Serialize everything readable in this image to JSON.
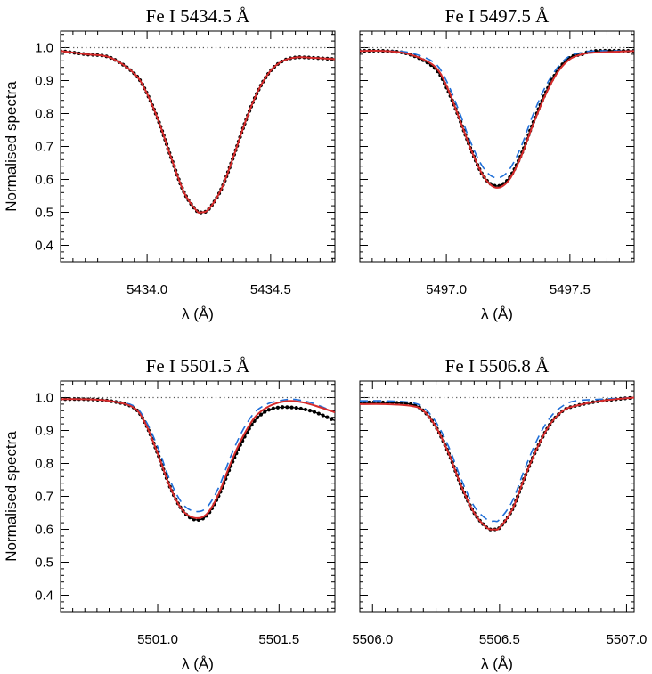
{
  "colors": {
    "observed": "#000000",
    "model_solid": "#d62b2b",
    "model_dashed": "#1f6fd8",
    "continuum": "#555555"
  },
  "shared": {
    "ylabel": "Normalised spectra",
    "xlabel": "λ (Å)"
  },
  "chart_data": [
    {
      "type": "line",
      "title": "Fe I  5434.5 Å",
      "xlabel": "λ (Å)",
      "ylabel": "Normalised spectra",
      "xlim": [
        5433.65,
        5434.76
      ],
      "ylim": [
        0.35,
        1.05
      ],
      "xticks": [
        5434.0,
        5434.5
      ],
      "xtick_labels": [
        "5434.0",
        "5434.5"
      ],
      "yticks": [
        0.4,
        0.5,
        0.6,
        0.7,
        0.8,
        0.9,
        1.0
      ],
      "ytick_labels": [
        "0.4",
        "0.5",
        "0.6",
        "0.7",
        "0.8",
        "0.9",
        "1.0"
      ],
      "continuum": 1.0,
      "series": [
        {
          "style": "observed-dots",
          "x": [
            5433.65,
            5433.75,
            5433.85,
            5433.95,
            5434.0,
            5434.05,
            5434.1,
            5434.15,
            5434.2,
            5434.22,
            5434.25,
            5434.3,
            5434.35,
            5434.4,
            5434.45,
            5434.5,
            5434.55,
            5434.6,
            5434.65,
            5434.76
          ],
          "y": [
            0.99,
            0.98,
            0.97,
            0.92,
            0.86,
            0.77,
            0.66,
            0.56,
            0.505,
            0.5,
            0.51,
            0.57,
            0.67,
            0.78,
            0.87,
            0.93,
            0.96,
            0.97,
            0.97,
            0.965
          ]
        },
        {
          "style": "solid",
          "x": [
            5433.65,
            5433.75,
            5433.85,
            5433.95,
            5434.0,
            5434.05,
            5434.1,
            5434.15,
            5434.2,
            5434.22,
            5434.25,
            5434.3,
            5434.35,
            5434.4,
            5434.45,
            5434.5,
            5434.55,
            5434.6,
            5434.65,
            5434.76
          ],
          "y": [
            0.99,
            0.98,
            0.97,
            0.92,
            0.86,
            0.77,
            0.66,
            0.56,
            0.505,
            0.5,
            0.51,
            0.57,
            0.67,
            0.78,
            0.87,
            0.93,
            0.96,
            0.97,
            0.97,
            0.965
          ]
        }
      ]
    },
    {
      "type": "line",
      "title": "Fe I  5497.5 Å",
      "xlabel": "λ (Å)",
      "ylabel": "",
      "xlim": [
        5496.65,
        5497.76
      ],
      "ylim": [
        0.35,
        1.05
      ],
      "xticks": [
        5497.0,
        5497.5
      ],
      "xtick_labels": [
        "5497.0",
        "5497.5"
      ],
      "yticks": [
        0.4,
        0.5,
        0.6,
        0.7,
        0.8,
        0.9,
        1.0
      ],
      "ytick_labels": [],
      "continuum": 1.0,
      "series": [
        {
          "style": "observed-dots",
          "x": [
            5496.65,
            5496.75,
            5496.85,
            5496.95,
            5497.0,
            5497.05,
            5497.1,
            5497.15,
            5497.2,
            5497.25,
            5497.3,
            5497.35,
            5497.4,
            5497.45,
            5497.5,
            5497.55,
            5497.6,
            5497.76
          ],
          "y": [
            0.99,
            0.99,
            0.98,
            0.94,
            0.88,
            0.79,
            0.69,
            0.61,
            0.58,
            0.6,
            0.67,
            0.77,
            0.86,
            0.93,
            0.97,
            0.98,
            0.99,
            0.99
          ]
        },
        {
          "style": "solid",
          "x": [
            5496.65,
            5496.75,
            5496.85,
            5496.95,
            5497.0,
            5497.05,
            5497.1,
            5497.15,
            5497.2,
            5497.25,
            5497.3,
            5497.35,
            5497.4,
            5497.45,
            5497.5,
            5497.55,
            5497.6,
            5497.76
          ],
          "y": [
            0.99,
            0.99,
            0.98,
            0.945,
            0.885,
            0.79,
            0.69,
            0.61,
            0.575,
            0.595,
            0.665,
            0.765,
            0.855,
            0.925,
            0.965,
            0.98,
            0.985,
            0.99
          ]
        },
        {
          "style": "dashed",
          "x": [
            5496.65,
            5496.75,
            5496.85,
            5496.95,
            5497.0,
            5497.05,
            5497.1,
            5497.15,
            5497.2,
            5497.25,
            5497.3,
            5497.35,
            5497.4,
            5497.45,
            5497.5,
            5497.55,
            5497.6,
            5497.76
          ],
          "y": [
            0.99,
            0.99,
            0.985,
            0.955,
            0.9,
            0.81,
            0.71,
            0.635,
            0.605,
            0.625,
            0.695,
            0.795,
            0.88,
            0.94,
            0.975,
            0.985,
            0.99,
            0.99
          ]
        }
      ]
    },
    {
      "type": "line",
      "title": "Fe I  5501.5 Å",
      "xlabel": "λ (Å)",
      "ylabel": "Normalised spectra",
      "xlim": [
        5500.6,
        5501.73
      ],
      "ylim": [
        0.35,
        1.05
      ],
      "xticks": [
        5501.0,
        5501.5
      ],
      "xtick_labels": [
        "5501.0",
        "5501.5"
      ],
      "yticks": [
        0.4,
        0.5,
        0.6,
        0.7,
        0.8,
        0.9,
        1.0
      ],
      "ytick_labels": [
        "0.4",
        "0.5",
        "0.6",
        "0.7",
        "0.8",
        "0.9",
        "1.0"
      ],
      "continuum": 1.0,
      "series": [
        {
          "style": "observed-dots",
          "x": [
            5500.6,
            5500.7,
            5500.8,
            5500.9,
            5500.95,
            5501.0,
            5501.05,
            5501.1,
            5501.15,
            5501.2,
            5501.25,
            5501.3,
            5501.35,
            5501.4,
            5501.45,
            5501.5,
            5501.55,
            5501.6,
            5501.65,
            5501.73
          ],
          "y": [
            0.995,
            0.995,
            0.99,
            0.97,
            0.92,
            0.83,
            0.73,
            0.66,
            0.63,
            0.64,
            0.7,
            0.79,
            0.87,
            0.93,
            0.96,
            0.97,
            0.97,
            0.965,
            0.955,
            0.93
          ]
        },
        {
          "style": "solid",
          "x": [
            5500.6,
            5500.7,
            5500.8,
            5500.9,
            5500.95,
            5501.0,
            5501.05,
            5501.1,
            5501.15,
            5501.2,
            5501.25,
            5501.3,
            5501.35,
            5501.4,
            5501.45,
            5501.5,
            5501.55,
            5501.6,
            5501.65,
            5501.73
          ],
          "y": [
            0.995,
            0.995,
            0.99,
            0.97,
            0.92,
            0.83,
            0.73,
            0.66,
            0.635,
            0.645,
            0.705,
            0.8,
            0.88,
            0.94,
            0.97,
            0.985,
            0.99,
            0.985,
            0.975,
            0.955
          ]
        },
        {
          "style": "dashed",
          "x": [
            5500.6,
            5500.7,
            5500.8,
            5500.9,
            5500.95,
            5501.0,
            5501.05,
            5501.1,
            5501.15,
            5501.2,
            5501.25,
            5501.3,
            5501.35,
            5501.4,
            5501.45,
            5501.5,
            5501.55,
            5501.6,
            5501.65,
            5501.73
          ],
          "y": [
            0.995,
            0.995,
            0.99,
            0.975,
            0.93,
            0.85,
            0.75,
            0.68,
            0.655,
            0.665,
            0.725,
            0.82,
            0.9,
            0.955,
            0.98,
            0.99,
            0.995,
            0.99,
            0.98,
            0.955
          ]
        }
      ]
    },
    {
      "type": "line",
      "title": "Fe I  5506.8 Å",
      "xlabel": "λ (Å)",
      "ylabel": "",
      "xlim": [
        5505.95,
        5507.03
      ],
      "ylim": [
        0.35,
        1.05
      ],
      "xticks": [
        5506.0,
        5506.5,
        5507.0
      ],
      "xtick_labels": [
        "5506.0",
        "5506.5",
        "5507.0"
      ],
      "yticks": [
        0.4,
        0.5,
        0.6,
        0.7,
        0.8,
        0.9,
        1.0
      ],
      "ytick_labels": [],
      "continuum": 1.0,
      "series": [
        {
          "style": "observed-dots",
          "x": [
            5505.95,
            5506.05,
            5506.15,
            5506.2,
            5506.25,
            5506.3,
            5506.35,
            5506.4,
            5506.45,
            5506.48,
            5506.5,
            5506.55,
            5506.6,
            5506.65,
            5506.7,
            5506.75,
            5506.8,
            5506.9,
            5507.03
          ],
          "y": [
            0.985,
            0.985,
            0.98,
            0.96,
            0.91,
            0.83,
            0.73,
            0.65,
            0.605,
            0.6,
            0.605,
            0.66,
            0.76,
            0.85,
            0.92,
            0.96,
            0.975,
            0.99,
            1.0
          ]
        },
        {
          "style": "solid",
          "x": [
            5505.95,
            5506.05,
            5506.15,
            5506.2,
            5506.25,
            5506.3,
            5506.35,
            5506.4,
            5506.45,
            5506.48,
            5506.5,
            5506.55,
            5506.6,
            5506.65,
            5506.7,
            5506.75,
            5506.8,
            5506.9,
            5507.03
          ],
          "y": [
            0.98,
            0.98,
            0.975,
            0.96,
            0.91,
            0.83,
            0.73,
            0.65,
            0.605,
            0.6,
            0.605,
            0.66,
            0.76,
            0.85,
            0.92,
            0.96,
            0.975,
            0.99,
            1.0
          ]
        },
        {
          "style": "dashed",
          "x": [
            5505.95,
            5506.05,
            5506.15,
            5506.2,
            5506.25,
            5506.3,
            5506.35,
            5506.4,
            5506.45,
            5506.48,
            5506.5,
            5506.55,
            5506.6,
            5506.65,
            5506.7,
            5506.75,
            5506.8,
            5506.9,
            5507.03
          ],
          "y": [
            0.99,
            0.99,
            0.985,
            0.97,
            0.925,
            0.85,
            0.75,
            0.67,
            0.63,
            0.625,
            0.63,
            0.685,
            0.785,
            0.875,
            0.94,
            0.975,
            0.99,
            0.995,
            1.0
          ]
        }
      ]
    }
  ]
}
